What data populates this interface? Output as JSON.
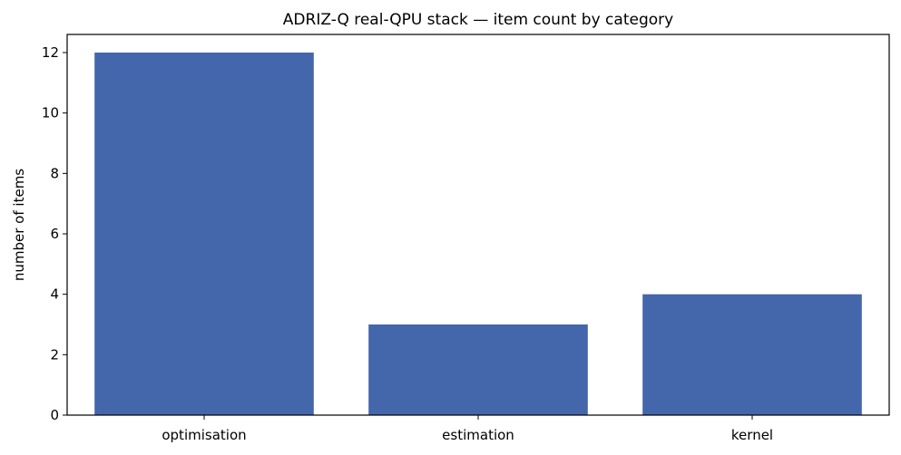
{
  "chart_data": {
    "type": "bar",
    "title": "ADRIZ-Q real-QPU stack — item count by category",
    "xlabel": "",
    "ylabel": "number of items",
    "categories": [
      "optimisation",
      "estimation",
      "kernel"
    ],
    "values": [
      12,
      3,
      4
    ],
    "ylim": [
      0,
      12.6
    ],
    "yticks": [
      0,
      2,
      4,
      6,
      8,
      10,
      12
    ],
    "bar_color": "#4466aa",
    "grid": false,
    "legend": "none"
  }
}
